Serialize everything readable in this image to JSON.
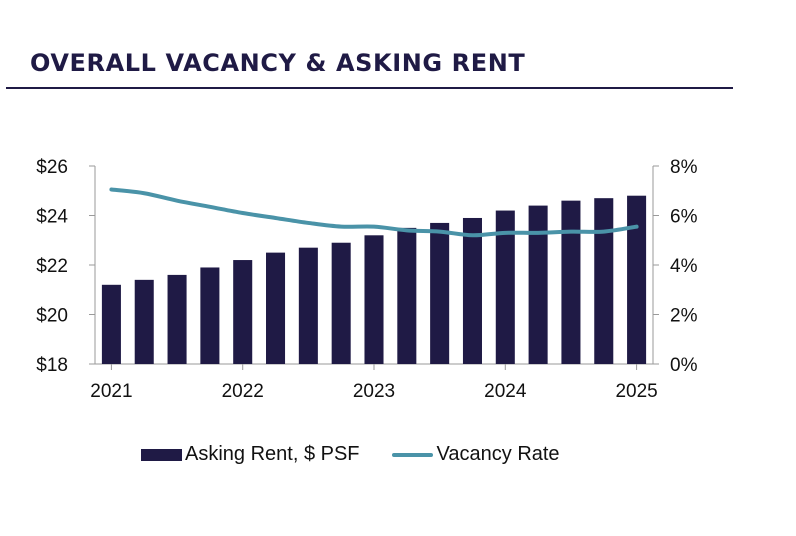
{
  "header": {
    "title": "OVERALL VACANCY & ASKING RENT"
  },
  "colors": {
    "bar": "#1f1a45",
    "line": "#4a93a8",
    "axis": "#9a9a9a"
  },
  "chart_data": {
    "type": "bar",
    "title": "OVERALL VACANCY & ASKING RENT",
    "x": [
      "2021 Q1",
      "2021 Q2",
      "2021 Q3",
      "2021 Q4",
      "2022 Q1",
      "2022 Q2",
      "2022 Q3",
      "2022 Q4",
      "2023 Q1",
      "2023 Q2",
      "2023 Q3",
      "2023 Q4",
      "2024 Q1",
      "2024 Q2",
      "2024 Q3",
      "2024 Q4",
      "2025 Q1"
    ],
    "xticks": [
      "2021",
      "2022",
      "2023",
      "2024",
      "2025"
    ],
    "series": [
      {
        "name": "Asking Rent, $ PSF",
        "type": "bar",
        "axis": "left",
        "values": [
          21.2,
          21.4,
          21.6,
          21.9,
          22.2,
          22.5,
          22.7,
          22.9,
          23.2,
          23.5,
          23.7,
          23.9,
          24.2,
          24.4,
          24.6,
          24.7,
          24.8
        ]
      },
      {
        "name": "Vacancy Rate",
        "type": "line",
        "axis": "right",
        "values": [
          7.05,
          6.9,
          6.6,
          6.35,
          6.1,
          5.9,
          5.7,
          5.55,
          5.55,
          5.4,
          5.35,
          5.2,
          5.3,
          5.3,
          5.35,
          5.35,
          5.55
        ]
      }
    ],
    "y_left": {
      "ticks": [
        "$26",
        "$24",
        "$22",
        "$20",
        "$18"
      ],
      "lim": [
        18,
        26
      ]
    },
    "y_right": {
      "ticks": [
        "8%",
        "6%",
        "4%",
        "2%",
        "0%"
      ],
      "lim": [
        0,
        8
      ]
    },
    "legend_position": "bottom"
  },
  "legend": {
    "bar_label": "Asking Rent, $ PSF",
    "line_label": "Vacancy Rate"
  }
}
